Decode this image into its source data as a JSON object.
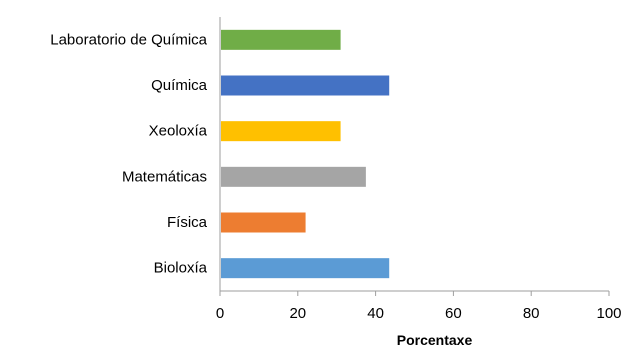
{
  "chart_data": {
    "type": "bar",
    "orientation": "horizontal",
    "categories": [
      "Laboratorio de Química",
      "Química",
      "Xeoloxía",
      "Matemáticas",
      "Física",
      "Bioloxía"
    ],
    "values": [
      31,
      43.5,
      31,
      37.5,
      22,
      43.5
    ],
    "colors": [
      "#70ad47",
      "#4472c4",
      "#ffc000",
      "#a5a5a5",
      "#ed7d31",
      "#5b9bd5"
    ],
    "xlabel": "Porcentaxe",
    "ylabel": "",
    "xlim": [
      0,
      100
    ],
    "xticks": [
      0,
      20,
      40,
      60,
      80,
      100
    ],
    "grid": false,
    "legend": "none"
  }
}
